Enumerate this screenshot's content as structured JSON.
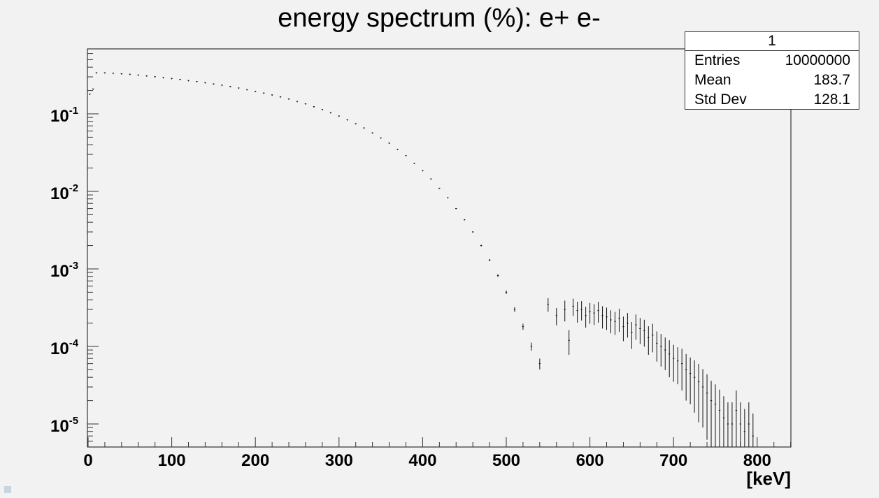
{
  "chart_data": {
    "type": "histogram",
    "title": "energy spectrum (%): e+ e-",
    "xlabel": "[keV]",
    "ylabel": "",
    "xlim": [
      0,
      840
    ],
    "ylog": true,
    "ylim": [
      5e-06,
      0.8
    ],
    "x_ticks": [
      0,
      100,
      200,
      300,
      400,
      500,
      600,
      700,
      800
    ],
    "y_ticks": [
      {
        "base": "10",
        "exp": "-1",
        "value": 0.1
      },
      {
        "base": "10",
        "exp": "-2",
        "value": 0.01
      },
      {
        "base": "10",
        "exp": "-3",
        "value": 0.001
      },
      {
        "base": "10",
        "exp": "-4",
        "value": 0.0001
      },
      {
        "base": "10",
        "exp": "-5",
        "value": 1e-05
      }
    ],
    "series": [
      {
        "name": "1",
        "style": "error-bars",
        "x": [
          2,
          6,
          10,
          20,
          30,
          40,
          50,
          60,
          70,
          80,
          90,
          100,
          110,
          120,
          130,
          140,
          150,
          160,
          170,
          180,
          190,
          200,
          210,
          220,
          230,
          240,
          250,
          260,
          270,
          280,
          290,
          300,
          310,
          320,
          330,
          340,
          350,
          360,
          370,
          380,
          390,
          400,
          410,
          420,
          430,
          440,
          450,
          460,
          470,
          480,
          490,
          500,
          510,
          520,
          530,
          540,
          550,
          560,
          570,
          575,
          580,
          585,
          590,
          595,
          600,
          605,
          610,
          615,
          620,
          625,
          630,
          635,
          640,
          645,
          650,
          655,
          660,
          665,
          670,
          675,
          680,
          685,
          690,
          695,
          700,
          705,
          710,
          715,
          720,
          725,
          730,
          735,
          740,
          745,
          750,
          755,
          760,
          765,
          770,
          775,
          780,
          785,
          790,
          795
        ],
        "y": [
          0.18,
          0.21,
          0.34,
          0.34,
          0.335,
          0.33,
          0.325,
          0.318,
          0.31,
          0.302,
          0.295,
          0.287,
          0.279,
          0.27,
          0.262,
          0.253,
          0.244,
          0.235,
          0.226,
          0.216,
          0.206,
          0.196,
          0.186,
          0.176,
          0.166,
          0.156,
          0.145,
          0.135,
          0.124,
          0.114,
          0.104,
          0.094,
          0.084,
          0.075,
          0.066,
          0.057,
          0.049,
          0.042,
          0.035,
          0.029,
          0.023,
          0.0185,
          0.0145,
          0.011,
          0.0083,
          0.006,
          0.0043,
          0.003,
          0.002,
          0.0013,
          0.00082,
          0.0005,
          0.0003,
          0.00018,
          0.0001,
          6e-05,
          0.00035,
          0.00025,
          0.0003,
          0.00012,
          0.00033,
          0.00029,
          0.0003,
          0.00025,
          0.00028,
          0.00027,
          0.00029,
          0.00025,
          0.00024,
          0.00022,
          0.00021,
          0.00023,
          0.00018,
          0.0002,
          0.00015,
          0.00019,
          0.00017,
          0.00016,
          0.00013,
          0.00014,
          0.00011,
          0.0001,
          9e-05,
          8e-05,
          7e-05,
          6.5e-05,
          6e-05,
          5e-05,
          4.5e-05,
          4e-05,
          3.5e-05,
          3e-05,
          2.5e-05,
          2e-05,
          1.8e-05,
          1.5e-05,
          1.2e-05,
          1e-05,
          1e-05,
          1.5e-05,
          1e-05,
          8e-06,
          1e-05,
          7e-06
        ],
        "y_err_rel": [
          0.004,
          0.004,
          0.002,
          0.002,
          0.002,
          0.002,
          0.002,
          0.002,
          0.002,
          0.002,
          0.002,
          0.002,
          0.002,
          0.002,
          0.002,
          0.002,
          0.002,
          0.002,
          0.002,
          0.002,
          0.002,
          0.002,
          0.002,
          0.002,
          0.002,
          0.003,
          0.003,
          0.003,
          0.003,
          0.003,
          0.003,
          0.003,
          0.003,
          0.004,
          0.004,
          0.004,
          0.005,
          0.005,
          0.006,
          0.006,
          0.007,
          0.008,
          0.009,
          0.01,
          0.012,
          0.014,
          0.017,
          0.02,
          0.025,
          0.03,
          0.04,
          0.05,
          0.07,
          0.09,
          0.12,
          0.16,
          0.2,
          0.25,
          0.3,
          0.35,
          0.25,
          0.3,
          0.28,
          0.3,
          0.3,
          0.3,
          0.3,
          0.32,
          0.32,
          0.33,
          0.33,
          0.33,
          0.35,
          0.35,
          0.38,
          0.36,
          0.37,
          0.38,
          0.4,
          0.4,
          0.42,
          0.45,
          0.45,
          0.5,
          0.5,
          0.5,
          0.55,
          0.6,
          0.6,
          0.65,
          0.7,
          0.7,
          0.75,
          0.8,
          0.8,
          0.85,
          0.9,
          0.9,
          0.9,
          0.8,
          0.9,
          0.95,
          0.9,
          0.95
        ]
      }
    ]
  },
  "stats_box": {
    "name": "1",
    "rows": [
      {
        "label": "Entries",
        "value": "10000000"
      },
      {
        "label": "Mean",
        "value": "183.7"
      },
      {
        "label": "Std Dev",
        "value": "128.1"
      }
    ]
  }
}
